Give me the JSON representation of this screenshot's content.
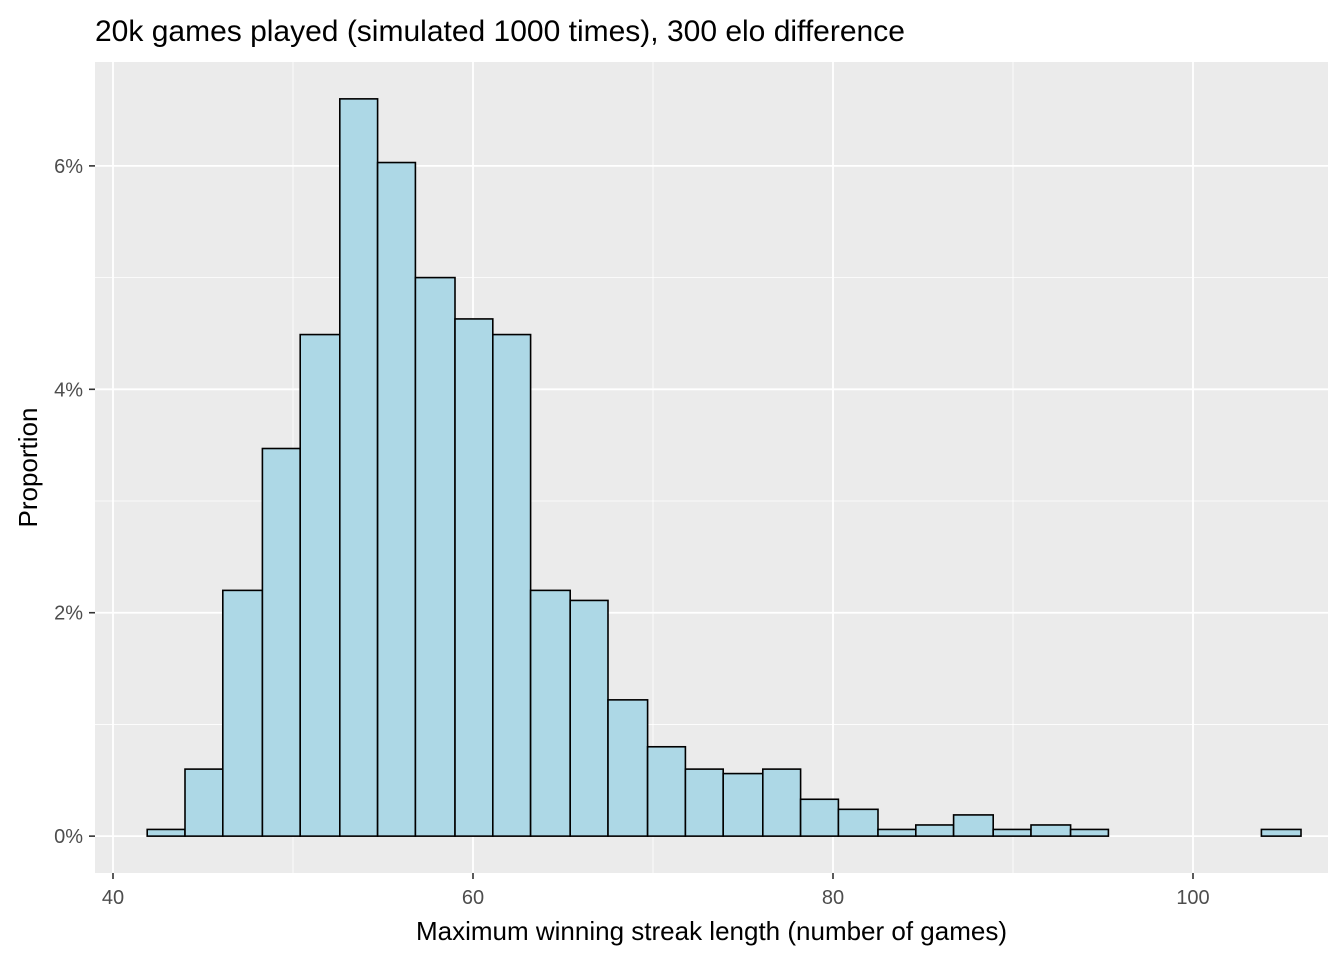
{
  "chart_data": {
    "type": "bar",
    "title": "20k games played (simulated 1000 times), 300 elo difference",
    "xlabel": "Maximum winning streak length (number of games)",
    "ylabel": "Proportion",
    "xlim": [
      39.0,
      107.5
    ],
    "ylim": [
      -0.0033,
      0.0693
    ],
    "x_ticks": [
      40,
      60,
      80,
      100
    ],
    "y_ticks": [
      0,
      0.02,
      0.04,
      0.06
    ],
    "y_tick_labels": [
      "0%",
      "2%",
      "4%",
      "6%"
    ],
    "grid": true,
    "colors": {
      "panel": "#ebebeb",
      "grid": "#ffffff",
      "bar_fill": "#add8e6",
      "bar_stroke": "#000000",
      "tick": "#333333"
    },
    "bins": [
      {
        "x0": 41.9,
        "x1": 44.0,
        "value": 0.0006
      },
      {
        "x0": 44.0,
        "x1": 46.1,
        "value": 0.006
      },
      {
        "x0": 46.1,
        "x1": 48.3,
        "value": 0.022
      },
      {
        "x0": 48.3,
        "x1": 50.4,
        "value": 0.0347
      },
      {
        "x0": 50.4,
        "x1": 52.6,
        "value": 0.0449
      },
      {
        "x0": 52.6,
        "x1": 54.7,
        "value": 0.066
      },
      {
        "x0": 54.7,
        "x1": 56.8,
        "value": 0.0603
      },
      {
        "x0": 56.8,
        "x1": 59.0,
        "value": 0.05
      },
      {
        "x0": 59.0,
        "x1": 61.1,
        "value": 0.0463
      },
      {
        "x0": 61.1,
        "x1": 63.2,
        "value": 0.0449
      },
      {
        "x0": 63.2,
        "x1": 65.4,
        "value": 0.022
      },
      {
        "x0": 65.4,
        "x1": 67.5,
        "value": 0.0211
      },
      {
        "x0": 67.5,
        "x1": 69.7,
        "value": 0.0122
      },
      {
        "x0": 69.7,
        "x1": 71.8,
        "value": 0.008
      },
      {
        "x0": 71.8,
        "x1": 73.9,
        "value": 0.006
      },
      {
        "x0": 73.9,
        "x1": 76.1,
        "value": 0.0056
      },
      {
        "x0": 76.1,
        "x1": 78.2,
        "value": 0.006
      },
      {
        "x0": 78.2,
        "x1": 80.3,
        "value": 0.0033
      },
      {
        "x0": 80.3,
        "x1": 82.5,
        "value": 0.0024
      },
      {
        "x0": 82.5,
        "x1": 84.6,
        "value": 0.0006
      },
      {
        "x0": 84.6,
        "x1": 86.7,
        "value": 0.001
      },
      {
        "x0": 86.7,
        "x1": 88.9,
        "value": 0.0019
      },
      {
        "x0": 88.9,
        "x1": 91.0,
        "value": 0.0006
      },
      {
        "x0": 91.0,
        "x1": 93.2,
        "value": 0.001
      },
      {
        "x0": 93.2,
        "x1": 95.3,
        "value": 0.0006
      },
      {
        "x0": 95.3,
        "x1": 97.4,
        "value": 0.0
      },
      {
        "x0": 97.4,
        "x1": 99.6,
        "value": 0.0
      },
      {
        "x0": 99.6,
        "x1": 101.7,
        "value": 0.0
      },
      {
        "x0": 101.7,
        "x1": 103.8,
        "value": 0.0
      },
      {
        "x0": 103.8,
        "x1": 106.0,
        "value": 0.0006
      }
    ]
  }
}
